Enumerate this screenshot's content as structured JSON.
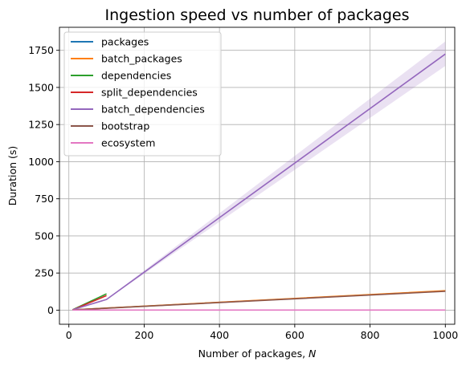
{
  "chart_data": {
    "type": "line",
    "title": "Ingestion speed vs number of packages",
    "xlabel": "Number of packages, N",
    "xlabel_parts": [
      "Number of packages, ",
      "N"
    ],
    "ylabel": "Duration (s)",
    "xlim": [
      -25,
      1025
    ],
    "ylim": [
      -95,
      1905
    ],
    "xticks": [
      0,
      200,
      400,
      600,
      800,
      1000
    ],
    "xtick_labels": [
      "0",
      "200",
      "400",
      "600",
      "800",
      "1000"
    ],
    "yticks": [
      0,
      250,
      500,
      750,
      1000,
      1250,
      1500,
      1750
    ],
    "ytick_labels": [
      "0",
      "250",
      "500",
      "750",
      "1000",
      "1250",
      "1500",
      "1750"
    ],
    "grid": true,
    "legend_position": "upper-left",
    "series": [
      {
        "name": "packages",
        "color": "#1f77b4",
        "x": [
          10,
          100,
          1000
        ],
        "y": [
          2,
          14,
          129
        ]
      },
      {
        "name": "batch_packages",
        "color": "#ff7f0e",
        "x": [
          10,
          100,
          1000
        ],
        "y": [
          2,
          14,
          131
        ]
      },
      {
        "name": "dependencies",
        "color": "#2ca02c",
        "x": [
          10,
          100
        ],
        "y": [
          3,
          110
        ]
      },
      {
        "name": "split_dependencies",
        "color": "#d62728",
        "x": [
          10,
          100
        ],
        "y": [
          2,
          98
        ]
      },
      {
        "name": "batch_dependencies",
        "color": "#9467bd",
        "x": [
          10,
          100,
          1000
        ],
        "y": [
          3,
          72,
          1725
        ],
        "band_low": [
          3,
          70,
          1645
        ],
        "band_high": [
          3,
          74,
          1810
        ]
      },
      {
        "name": "bootstrap",
        "color": "#8c564b",
        "x": [
          10,
          100,
          1000
        ],
        "y": [
          2,
          13,
          127
        ]
      },
      {
        "name": "ecosystem",
        "color": "#e377c2",
        "x": [
          10,
          100,
          1000
        ],
        "y": [
          0.5,
          0.6,
          0.8
        ]
      }
    ]
  }
}
